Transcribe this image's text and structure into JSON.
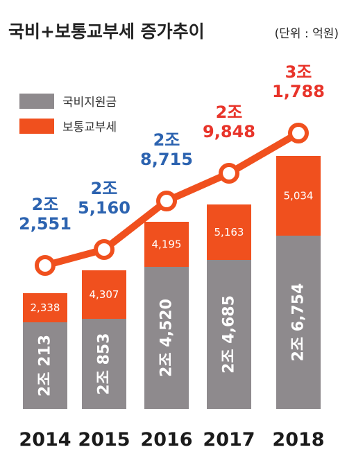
{
  "title": "국비+보통교부세 증가추이",
  "unit": "(단위 : 억원)",
  "chart_data": {
    "type": "bar",
    "stacked": true,
    "categories": [
      "2014",
      "2015",
      "2016",
      "2017",
      "2018"
    ],
    "series": [
      {
        "name": "국비지원금",
        "color": "#8e8a8d",
        "values": [
          20213,
          20853,
          24520,
          24685,
          26754
        ],
        "labels": [
          "2조 213",
          "2조 853",
          "2조 4,520",
          "2조 4,685",
          "2조 6,754"
        ]
      },
      {
        "name": "보통교부세",
        "color": "#f0501e",
        "values": [
          2338,
          4307,
          4195,
          5163,
          5034
        ],
        "labels": [
          "2,338",
          "4,307",
          "4,195",
          "5,163",
          "5,034"
        ]
      }
    ],
    "totals": {
      "values": [
        22551,
        25160,
        28715,
        29848,
        31788
      ],
      "labels": [
        [
          "2조",
          "2,551"
        ],
        [
          "2조",
          "5,160"
        ],
        [
          "2조",
          "8,715"
        ],
        [
          "2조",
          "9,848"
        ],
        [
          "3조",
          "1,788"
        ]
      ],
      "label_colors": [
        "#2c63b0",
        "#2c63b0",
        "#2c63b0",
        "#e8342a",
        "#e8342a"
      ]
    },
    "line_color": "#f0501e",
    "legend_position": "top-left"
  }
}
